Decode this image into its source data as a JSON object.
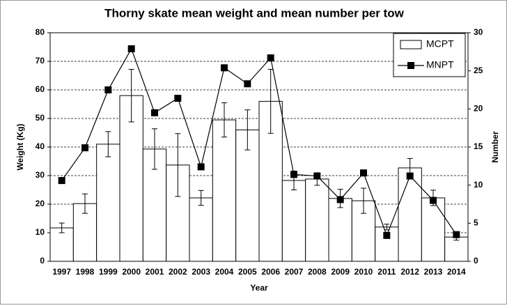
{
  "chart_data": {
    "type": "bar-line",
    "title": "Thorny skate mean weight and mean number per tow",
    "x_label": "Year",
    "y_label": "Weight (Kg)",
    "y2_label": "Number",
    "categories": [
      "1997",
      "1998",
      "1999",
      "2000",
      "2001",
      "2002",
      "2003",
      "2004",
      "2005",
      "2006",
      "2007",
      "2008",
      "2009",
      "2010",
      "2011",
      "2012",
      "2013",
      "2014"
    ],
    "series": [
      {
        "name": "MCPT",
        "type": "bar",
        "color": "#ffffff",
        "axis": "y",
        "values": [
          11.7,
          20.2,
          41,
          58,
          39.3,
          33.7,
          22.2,
          49.5,
          46,
          56,
          28.3,
          28.8,
          22,
          21.2,
          12,
          32.7,
          22.2,
          8.5
        ],
        "errors": [
          1.7,
          3.4,
          4.4,
          9.2,
          7.1,
          11,
          2.6,
          6,
          7,
          11.2,
          3.3,
          2.2,
          3.2,
          4.4,
          1,
          3.3,
          2.7,
          1.1
        ]
      },
      {
        "name": "MNPT",
        "type": "line",
        "color": "#000000",
        "axis": "y2",
        "values": [
          10.6,
          14.9,
          22.5,
          27.9,
          19.5,
          21.4,
          12.4,
          25.4,
          23.3,
          26.7,
          11.4,
          11.2,
          8.1,
          11.6,
          3.4,
          11.2,
          8,
          3.5
        ]
      }
    ],
    "ylim": [
      0,
      80
    ],
    "yticks": [
      0,
      10,
      20,
      30,
      40,
      50,
      60,
      70,
      80
    ],
    "y2lim": [
      0,
      30
    ],
    "y2ticks": [
      0,
      5,
      10,
      15,
      20,
      25,
      30
    ],
    "grid": true,
    "legend": "top-right"
  }
}
